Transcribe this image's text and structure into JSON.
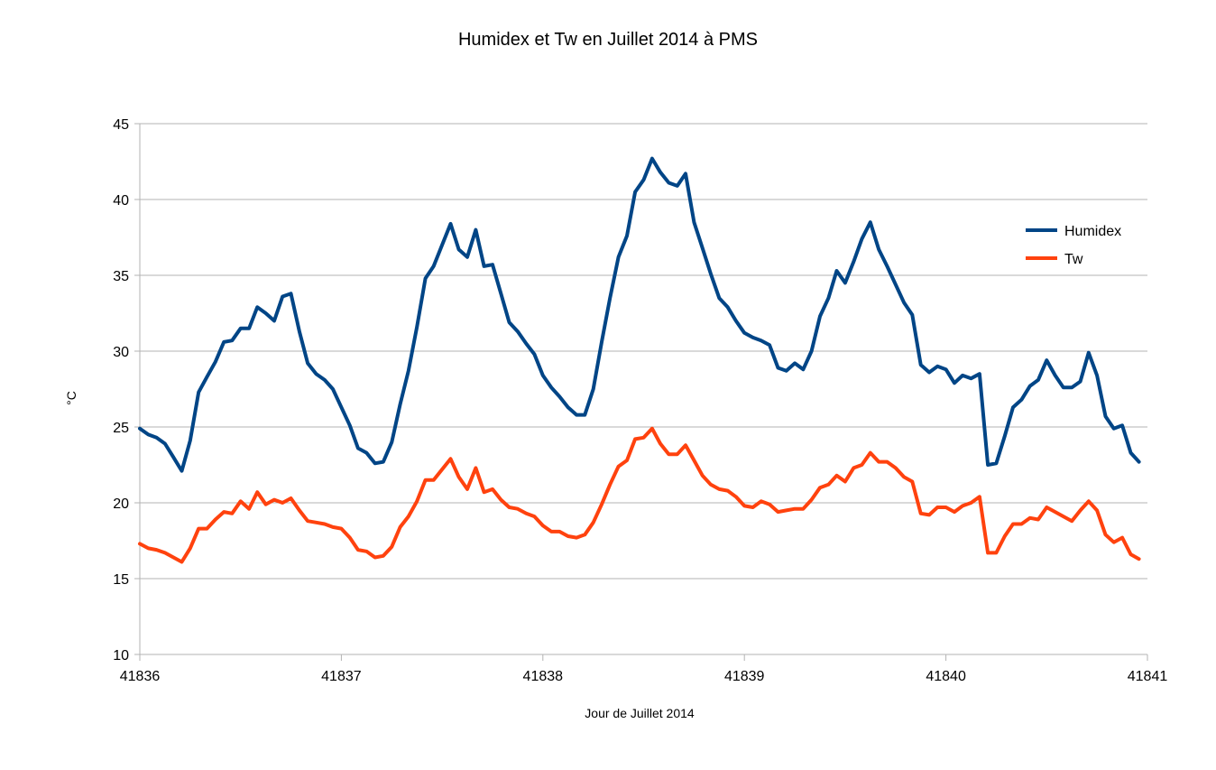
{
  "chart_data": {
    "type": "line",
    "title": "Humidex et Tw en Juillet 2014 à PMS",
    "xlabel": "Jour de Juillet 2014",
    "ylabel": "°C",
    "xlim": [
      41836,
      41841
    ],
    "ylim": [
      10,
      45
    ],
    "x_ticks": [
      41836,
      41837,
      41838,
      41839,
      41840,
      41841
    ],
    "y_ticks": [
      10,
      15,
      20,
      25,
      30,
      35,
      40,
      45
    ],
    "grid": true,
    "legend_position": "right",
    "series": [
      {
        "name": "Humidex",
        "color": "#004586",
        "x": [
          41836.0,
          41836.042,
          41836.083,
          41836.125,
          41836.167,
          41836.208,
          41836.25,
          41836.292,
          41836.333,
          41836.375,
          41836.417,
          41836.458,
          41836.5,
          41836.542,
          41836.583,
          41836.625,
          41836.667,
          41836.708,
          41836.75,
          41836.792,
          41836.833,
          41836.875,
          41836.917,
          41836.958,
          41837.0,
          41837.042,
          41837.083,
          41837.125,
          41837.167,
          41837.208,
          41837.25,
          41837.292,
          41837.333,
          41837.375,
          41837.417,
          41837.458,
          41837.5,
          41837.542,
          41837.583,
          41837.625,
          41837.667,
          41837.708,
          41837.75,
          41837.792,
          41837.833,
          41837.875,
          41837.917,
          41837.958,
          41838.0,
          41838.042,
          41838.083,
          41838.125,
          41838.167,
          41838.208,
          41838.25,
          41838.292,
          41838.333,
          41838.375,
          41838.417,
          41838.458,
          41838.5,
          41838.542,
          41838.583,
          41838.625,
          41838.667,
          41838.708,
          41838.75,
          41838.792,
          41838.833,
          41838.875,
          41838.917,
          41838.958,
          41839.0,
          41839.042,
          41839.083,
          41839.125,
          41839.167,
          41839.208,
          41839.25,
          41839.292,
          41839.333,
          41839.375,
          41839.417,
          41839.458,
          41839.5,
          41839.542,
          41839.583,
          41839.625,
          41839.667,
          41839.708,
          41839.75,
          41839.792,
          41839.833,
          41839.875,
          41839.917,
          41839.958,
          41840.0,
          41840.042,
          41840.083,
          41840.125,
          41840.167,
          41840.208,
          41840.25,
          41840.292,
          41840.333,
          41840.375,
          41840.417,
          41840.458,
          41840.5,
          41840.542,
          41840.583,
          41840.625,
          41840.667,
          41840.708,
          41840.75,
          41840.792,
          41840.833,
          41840.875,
          41840.917,
          41840.958
        ],
        "values": [
          24.9,
          24.5,
          24.3,
          23.9,
          23.0,
          22.1,
          24.1,
          27.3,
          28.3,
          29.3,
          30.6,
          30.7,
          31.5,
          31.5,
          32.9,
          32.5,
          32.0,
          33.6,
          33.8,
          31.3,
          29.2,
          28.5,
          28.1,
          27.5,
          26.3,
          25.1,
          23.6,
          23.3,
          22.6,
          22.7,
          24.0,
          26.5,
          28.7,
          31.6,
          34.8,
          35.6,
          37.0,
          38.4,
          36.7,
          36.2,
          38.0,
          35.6,
          35.7,
          33.8,
          31.9,
          31.3,
          30.5,
          29.8,
          28.4,
          27.6,
          27.0,
          26.3,
          25.8,
          25.8,
          27.5,
          30.6,
          33.5,
          36.2,
          37.6,
          40.5,
          41.3,
          42.7,
          41.8,
          41.1,
          40.9,
          41.7,
          38.5,
          36.8,
          35.1,
          33.5,
          32.9,
          32.0,
          31.2,
          30.9,
          30.7,
          30.4,
          28.9,
          28.7,
          29.2,
          28.8,
          30.0,
          32.3,
          33.5,
          35.3,
          34.5,
          35.9,
          37.4,
          38.5,
          36.7,
          35.6,
          34.4,
          33.2,
          32.4,
          29.1,
          28.6,
          29.0,
          28.8,
          27.9,
          28.4,
          28.2,
          28.5,
          22.5,
          22.6,
          24.4,
          26.3,
          26.8,
          27.7,
          28.1,
          29.4,
          28.4,
          27.6,
          27.6,
          28.0,
          29.9,
          28.4,
          25.7,
          24.9,
          25.1,
          23.3,
          22.7
        ]
      },
      {
        "name": "Tw",
        "color": "#ff420e",
        "x": [
          41836.0,
          41836.042,
          41836.083,
          41836.125,
          41836.167,
          41836.208,
          41836.25,
          41836.292,
          41836.333,
          41836.375,
          41836.417,
          41836.458,
          41836.5,
          41836.542,
          41836.583,
          41836.625,
          41836.667,
          41836.708,
          41836.75,
          41836.792,
          41836.833,
          41836.875,
          41836.917,
          41836.958,
          41837.0,
          41837.042,
          41837.083,
          41837.125,
          41837.167,
          41837.208,
          41837.25,
          41837.292,
          41837.333,
          41837.375,
          41837.417,
          41837.458,
          41837.5,
          41837.542,
          41837.583,
          41837.625,
          41837.667,
          41837.708,
          41837.75,
          41837.792,
          41837.833,
          41837.875,
          41837.917,
          41837.958,
          41838.0,
          41838.042,
          41838.083,
          41838.125,
          41838.167,
          41838.208,
          41838.25,
          41838.292,
          41838.333,
          41838.375,
          41838.417,
          41838.458,
          41838.5,
          41838.542,
          41838.583,
          41838.625,
          41838.667,
          41838.708,
          41838.75,
          41838.792,
          41838.833,
          41838.875,
          41838.917,
          41838.958,
          41839.0,
          41839.042,
          41839.083,
          41839.125,
          41839.167,
          41839.208,
          41839.25,
          41839.292,
          41839.333,
          41839.375,
          41839.417,
          41839.458,
          41839.5,
          41839.542,
          41839.583,
          41839.625,
          41839.667,
          41839.708,
          41839.75,
          41839.792,
          41839.833,
          41839.875,
          41839.917,
          41839.958,
          41840.0,
          41840.042,
          41840.083,
          41840.125,
          41840.167,
          41840.208,
          41840.25,
          41840.292,
          41840.333,
          41840.375,
          41840.417,
          41840.458,
          41840.5,
          41840.542,
          41840.583,
          41840.625,
          41840.667,
          41840.708,
          41840.75,
          41840.792,
          41840.833,
          41840.875,
          41840.917,
          41840.958
        ],
        "values": [
          17.3,
          17.0,
          16.9,
          16.7,
          16.4,
          16.1,
          17.0,
          18.3,
          18.3,
          18.9,
          19.4,
          19.3,
          20.1,
          19.6,
          20.7,
          19.9,
          20.2,
          20.0,
          20.3,
          19.5,
          18.8,
          18.7,
          18.6,
          18.4,
          18.3,
          17.7,
          16.9,
          16.8,
          16.4,
          16.5,
          17.1,
          18.4,
          19.1,
          20.1,
          21.5,
          21.5,
          22.2,
          22.9,
          21.7,
          20.9,
          22.3,
          20.7,
          20.9,
          20.2,
          19.7,
          19.6,
          19.3,
          19.1,
          18.5,
          18.1,
          18.1,
          17.8,
          17.7,
          17.9,
          18.7,
          19.9,
          21.2,
          22.4,
          22.8,
          24.2,
          24.3,
          24.9,
          23.9,
          23.2,
          23.2,
          23.8,
          22.8,
          21.8,
          21.2,
          20.9,
          20.8,
          20.4,
          19.8,
          19.7,
          20.1,
          19.9,
          19.4,
          19.5,
          19.6,
          19.6,
          20.2,
          21.0,
          21.2,
          21.8,
          21.4,
          22.3,
          22.5,
          23.3,
          22.7,
          22.7,
          22.3,
          21.7,
          21.4,
          19.3,
          19.2,
          19.7,
          19.7,
          19.4,
          19.8,
          20.0,
          20.4,
          16.7,
          16.7,
          17.8,
          18.6,
          18.6,
          19.0,
          18.9,
          19.7,
          19.4,
          19.1,
          18.8,
          19.5,
          20.1,
          19.5,
          17.9,
          17.4,
          17.7,
          16.6,
          16.3
        ]
      }
    ]
  }
}
